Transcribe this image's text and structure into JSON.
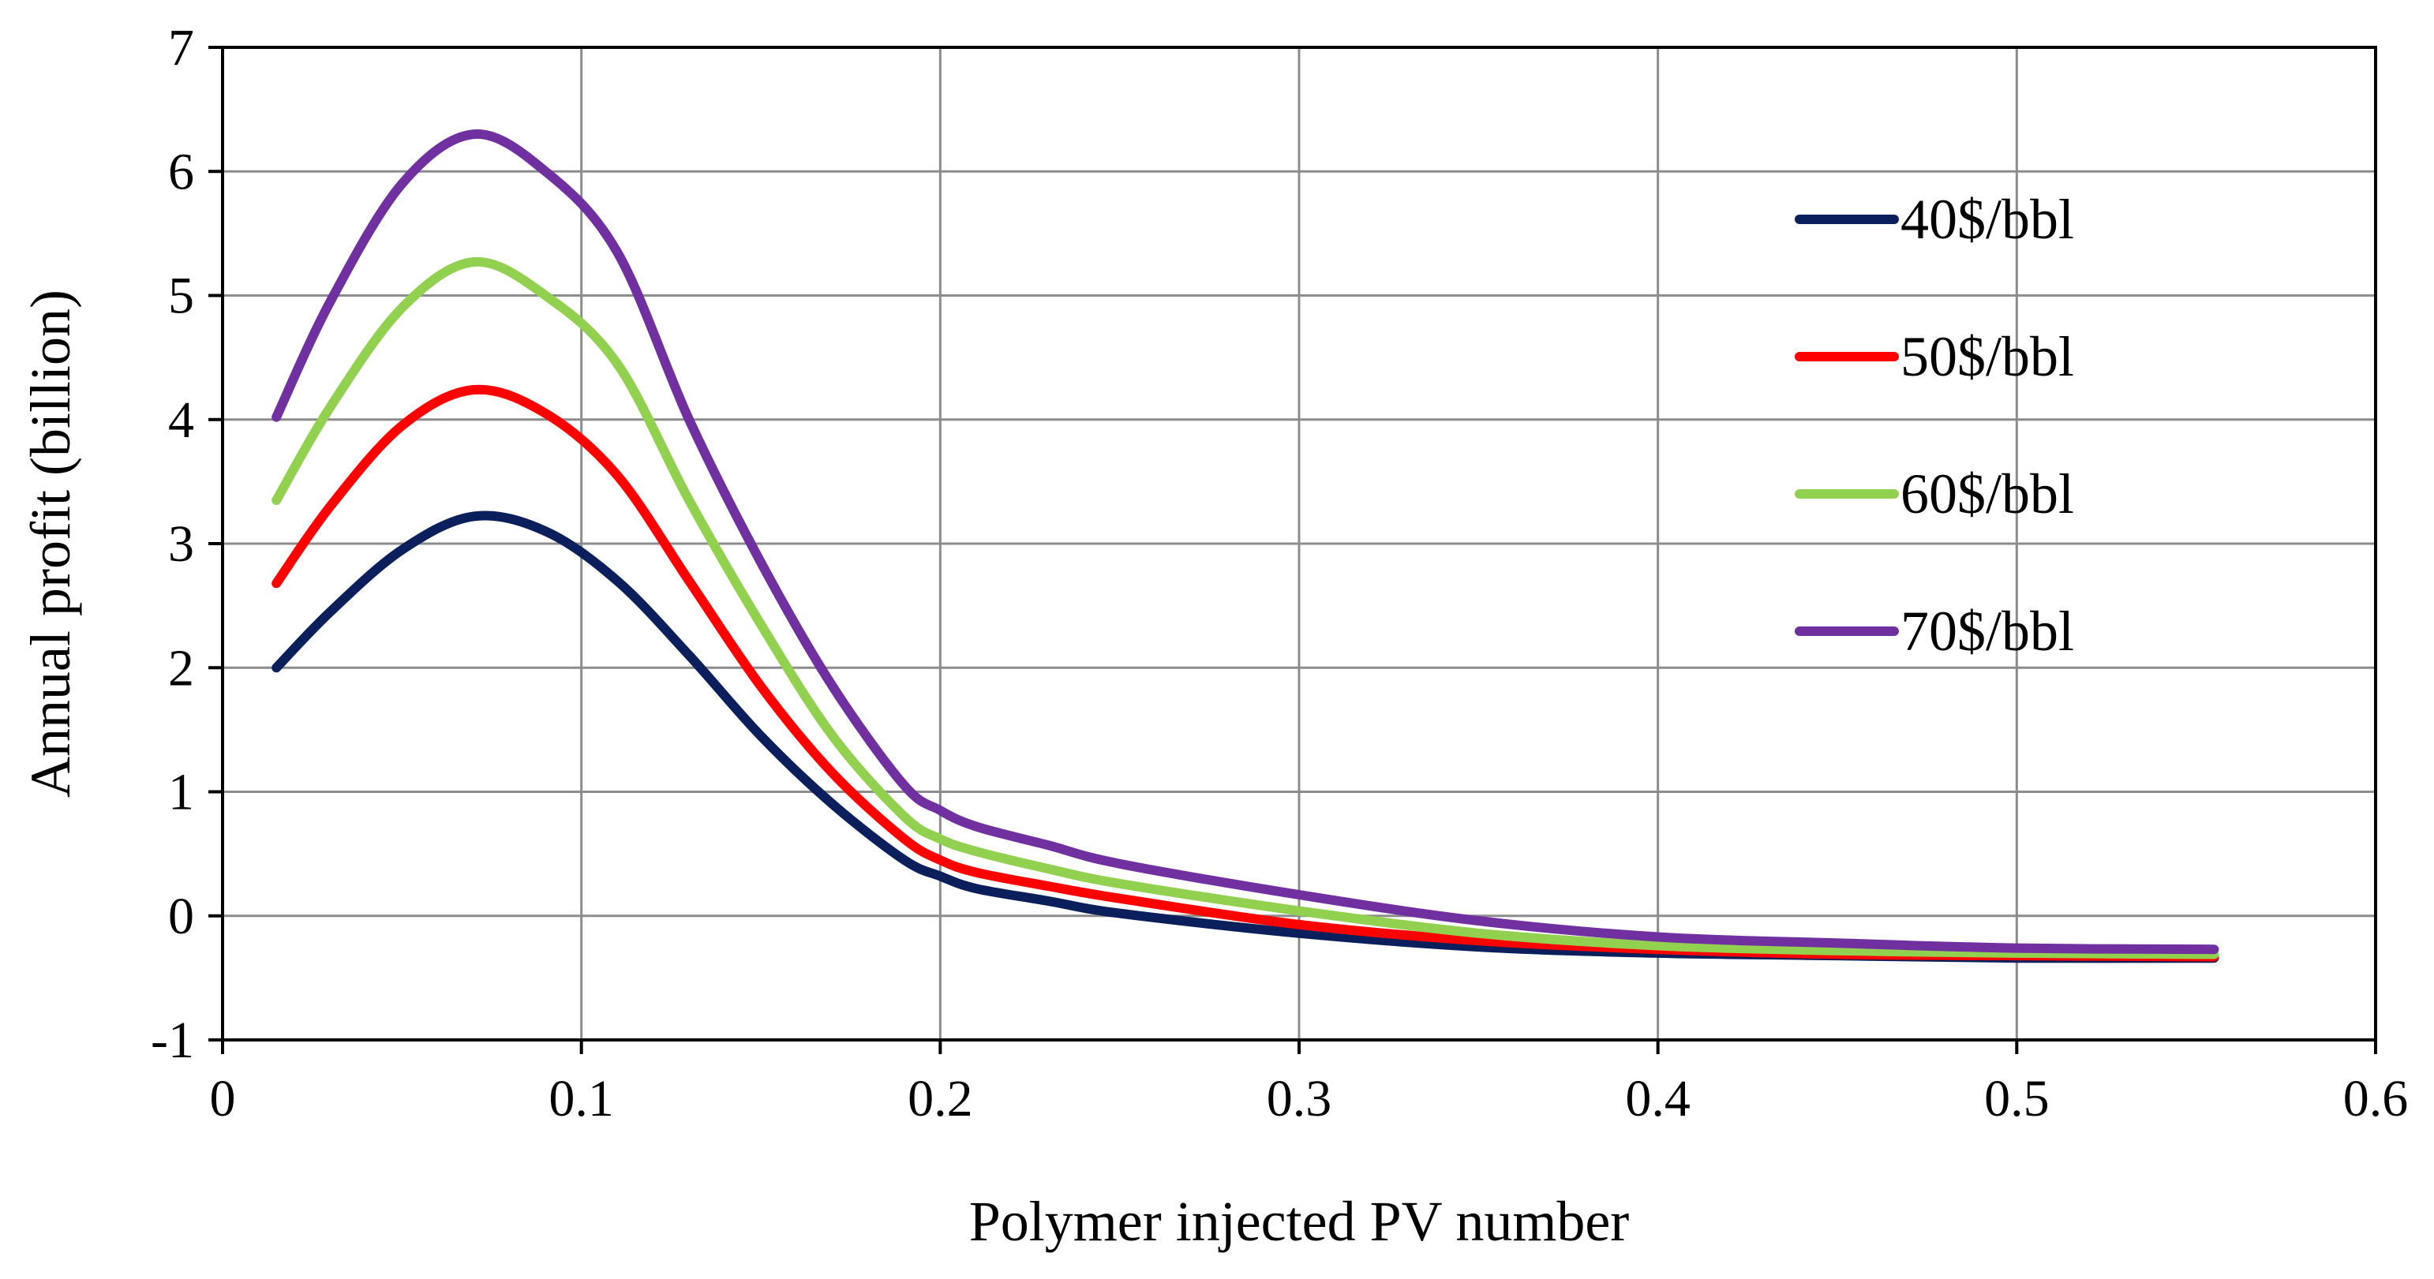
{
  "chart_data": {
    "type": "line",
    "title": "",
    "xlabel": "Polymer injected PV number",
    "ylabel": "Annual profit (billion)",
    "xlim": [
      0,
      0.6
    ],
    "ylim": [
      -1,
      7
    ],
    "xticks": [
      0,
      0.1,
      0.2,
      0.3,
      0.4,
      0.5,
      0.6
    ],
    "xtick_labels": [
      "0",
      "0.1",
      "0.2",
      "0.3",
      "0.4",
      "0.5",
      "0.6"
    ],
    "yticks": [
      -1,
      0,
      1,
      2,
      3,
      4,
      5,
      6,
      7
    ],
    "ytick_labels": [
      "-1",
      "0",
      "1",
      "2",
      "3",
      "4",
      "5",
      "6",
      "7"
    ],
    "grid": true,
    "legend_position": "top-right",
    "x": [
      0.015,
      0.03,
      0.05,
      0.07,
      0.09,
      0.11,
      0.13,
      0.15,
      0.17,
      0.19,
      0.2,
      0.21,
      0.23,
      0.25,
      0.3,
      0.35,
      0.4,
      0.45,
      0.5,
      0.555
    ],
    "series": [
      {
        "name": "40$/bbl",
        "color": "#0a1f5c",
        "values": [
          2.0,
          2.45,
          2.95,
          3.22,
          3.1,
          2.7,
          2.1,
          1.45,
          0.9,
          0.45,
          0.32,
          0.22,
          0.12,
          0.02,
          -0.14,
          -0.25,
          -0.3,
          -0.32,
          -0.34,
          -0.34
        ]
      },
      {
        "name": "50$/bbl",
        "color": "#ff0000",
        "values": [
          2.68,
          3.3,
          3.95,
          4.24,
          4.05,
          3.55,
          2.7,
          1.85,
          1.15,
          0.62,
          0.45,
          0.35,
          0.24,
          0.14,
          -0.07,
          -0.2,
          -0.27,
          -0.31,
          -0.32,
          -0.33
        ]
      },
      {
        "name": "60$/bbl",
        "color": "#92d050",
        "values": [
          3.35,
          4.1,
          4.9,
          5.27,
          5.0,
          4.45,
          3.35,
          2.35,
          1.45,
          0.8,
          0.62,
          0.52,
          0.38,
          0.26,
          0.04,
          -0.14,
          -0.24,
          -0.28,
          -0.3,
          -0.31
        ]
      },
      {
        "name": "70$/bbl",
        "color": "#7030a0",
        "values": [
          4.02,
          4.95,
          5.9,
          6.3,
          6.0,
          5.35,
          4.0,
          2.85,
          1.85,
          1.05,
          0.85,
          0.72,
          0.57,
          0.42,
          0.17,
          -0.04,
          -0.17,
          -0.22,
          -0.26,
          -0.27
        ]
      }
    ]
  }
}
